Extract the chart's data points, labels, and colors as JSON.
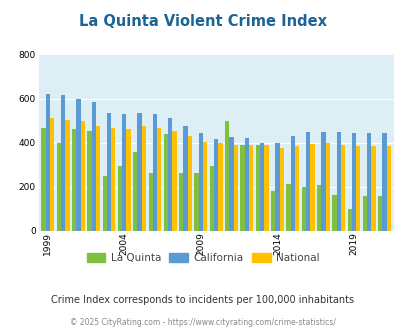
{
  "title": "La Quinta Violent Crime Index",
  "title_color": "#1a6496",
  "subtitle": "Crime Index corresponds to incidents per 100,000 inhabitants",
  "footer": "© 2025 CityRating.com - https://www.cityrating.com/crime-statistics/",
  "years": [
    1999,
    2000,
    2001,
    2002,
    2003,
    2004,
    2005,
    2006,
    2007,
    2008,
    2009,
    2010,
    2011,
    2012,
    2013,
    2014,
    2015,
    2016,
    2017,
    2018,
    2019,
    2020,
    2021
  ],
  "la_quinta": [
    465,
    400,
    460,
    455,
    250,
    295,
    360,
    265,
    440,
    265,
    265,
    295,
    500,
    390,
    390,
    180,
    215,
    200,
    210,
    165,
    100,
    160,
    160
  ],
  "california": [
    620,
    615,
    600,
    585,
    535,
    530,
    535,
    530,
    510,
    475,
    445,
    415,
    425,
    420,
    400,
    400,
    430,
    450,
    450,
    450,
    445,
    445,
    445
  ],
  "national": [
    510,
    505,
    500,
    475,
    465,
    460,
    475,
    465,
    455,
    430,
    405,
    400,
    390,
    390,
    390,
    375,
    385,
    395,
    400,
    390,
    385,
    385,
    385
  ],
  "colors": {
    "la_quinta": "#80c040",
    "california": "#5b9bd5",
    "national": "#ffc000"
  },
  "ylim": [
    0,
    800
  ],
  "yticks": [
    0,
    200,
    400,
    600,
    800
  ],
  "bg_color": "#ddeef5",
  "fig_bg": "#ffffff",
  "legend_labels": [
    "La Quinta",
    "California",
    "National"
  ],
  "xtick_years": [
    1999,
    2004,
    2009,
    2014,
    2019
  ],
  "bar_width": 0.28
}
